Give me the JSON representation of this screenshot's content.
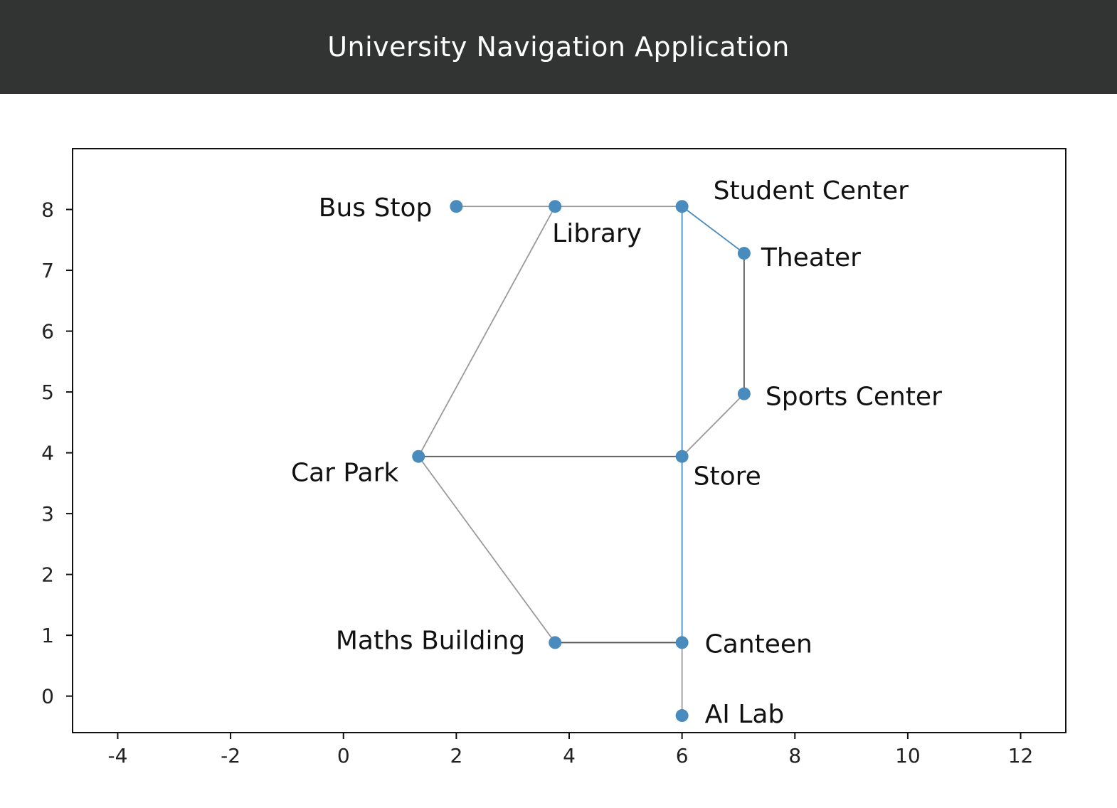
{
  "header": {
    "title": "University Navigation Application"
  },
  "colors": {
    "header_bg": "#323434",
    "node": "#4a8bbd",
    "edge_gray": "#9a9a9a",
    "edge_blue": "#4a8bbd",
    "edge_dark": "#555555"
  },
  "axes": {
    "x_ticks": [
      -4,
      -2,
      0,
      2,
      4,
      6,
      8,
      10,
      12
    ],
    "y_ticks": [
      0,
      1,
      2,
      3,
      4,
      5,
      6,
      7,
      8
    ],
    "xlim": [
      -4.8,
      12.8
    ],
    "ylim": [
      -0.6,
      9.0
    ]
  },
  "nodes": [
    {
      "id": "bus_stop",
      "label": "Bus Stop",
      "x": 2.0,
      "y": 8.05,
      "label_anchor": "end",
      "label_dx": -34,
      "label_dy": 14
    },
    {
      "id": "library",
      "label": "Library",
      "x": 3.75,
      "y": 8.05,
      "label_anchor": "start",
      "label_dx": -4,
      "label_dy": 50
    },
    {
      "id": "student_center",
      "label": "Student Center",
      "x": 6.0,
      "y": 8.05,
      "label_anchor": "start",
      "label_dx": 44,
      "label_dy": -10
    },
    {
      "id": "theater",
      "label": "Theater",
      "x": 7.1,
      "y": 7.28,
      "label_anchor": "start",
      "label_dx": 24,
      "label_dy": 18
    },
    {
      "id": "sports_center",
      "label": "Sports Center",
      "x": 7.1,
      "y": 4.97,
      "label_anchor": "start",
      "label_dx": 30,
      "label_dy": 16
    },
    {
      "id": "car_park",
      "label": "Car Park",
      "x": 1.33,
      "y": 3.94,
      "label_anchor": "end",
      "label_dx": -28,
      "label_dy": 35
    },
    {
      "id": "store",
      "label": "Store",
      "x": 6.0,
      "y": 3.94,
      "label_anchor": "start",
      "label_dx": 16,
      "label_dy": 40
    },
    {
      "id": "maths_building",
      "label": "Maths Building",
      "x": 3.75,
      "y": 0.88,
      "label_anchor": "end",
      "label_dx": -42,
      "label_dy": 9
    },
    {
      "id": "canteen",
      "label": "Canteen",
      "x": 6.0,
      "y": 0.88,
      "label_anchor": "start",
      "label_dx": 32,
      "label_dy": 14
    },
    {
      "id": "ai_lab",
      "label": "AI Lab",
      "x": 6.0,
      "y": -0.32,
      "label_anchor": "start",
      "label_dx": 32,
      "label_dy": 10
    }
  ],
  "edges": [
    {
      "from": "bus_stop",
      "to": "library",
      "color": "gray"
    },
    {
      "from": "library",
      "to": "student_center",
      "color": "gray"
    },
    {
      "from": "library",
      "to": "car_park",
      "color": "gray"
    },
    {
      "from": "student_center",
      "to": "theater",
      "color": "blue"
    },
    {
      "from": "student_center",
      "to": "store",
      "color": "blue"
    },
    {
      "from": "theater",
      "to": "sports_center",
      "color": "dark"
    },
    {
      "from": "sports_center",
      "to": "store",
      "color": "gray"
    },
    {
      "from": "car_park",
      "to": "store",
      "color": "dark"
    },
    {
      "from": "car_park",
      "to": "maths_building",
      "color": "gray"
    },
    {
      "from": "maths_building",
      "to": "canteen",
      "color": "dark"
    },
    {
      "from": "store",
      "to": "canteen",
      "color": "blue"
    },
    {
      "from": "canteen",
      "to": "ai_lab",
      "color": "gray"
    }
  ]
}
